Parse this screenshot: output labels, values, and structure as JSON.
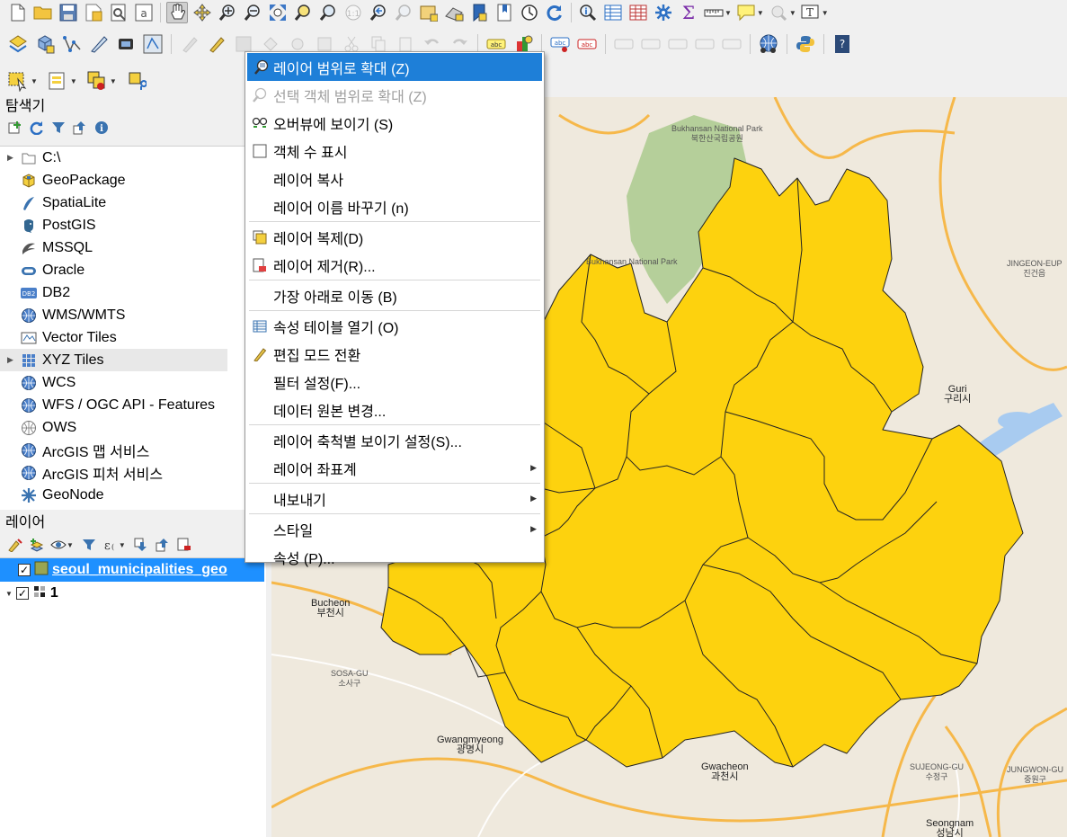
{
  "toolbar": {
    "row1": [
      "new-project-icon",
      "open-project-icon",
      "save-project-icon",
      "save-as-icon",
      "print-layout-icon",
      "style-manager-icon",
      "pan-map-icon",
      "pan-to-selection-icon",
      "zoom-in-icon",
      "zoom-out-icon",
      "zoom-full-icon",
      "zoom-to-selection-icon",
      "zoom-to-layer-icon",
      "zoom-native-icon",
      "zoom-last-icon",
      "zoom-next-icon",
      "new-map-view-icon",
      "new-3d-view-icon",
      "bookmark-icon",
      "show-bookmarks-icon",
      "temporal-controller-icon",
      "refresh-icon",
      "identify-icon",
      "attribute-table-icon",
      "field-calculator-icon",
      "processing-toolbox-icon",
      "statistics-icon",
      "measure-icon",
      "annotation-icon",
      "map-tips-icon",
      "text-annotation-icon"
    ],
    "row2": [
      "data-source-manager-icon",
      "new-geopackage-icon",
      "new-shapefile-icon",
      "digitize-icon",
      "gps-icon",
      "vertex-tool-icon",
      "current-edits-icon",
      "toggle-editing-icon",
      "save-edits-icon",
      "add-feature-icon",
      "label-icon",
      "pin-labels-icon",
      "python-console-icon",
      "help-icon"
    ]
  },
  "browser": {
    "title": "탐색기",
    "items": [
      {
        "label": "C:\\",
        "icon": "folder-icon",
        "expandable": true
      },
      {
        "label": "GeoPackage",
        "icon": "geopackage-icon",
        "expandable": false
      },
      {
        "label": "SpatiaLite",
        "icon": "spatialite-icon",
        "expandable": false
      },
      {
        "label": "PostGIS",
        "icon": "postgis-icon",
        "expandable": false
      },
      {
        "label": "MSSQL",
        "icon": "mssql-icon",
        "expandable": false
      },
      {
        "label": "Oracle",
        "icon": "oracle-icon",
        "expandable": false
      },
      {
        "label": "DB2",
        "icon": "db2-icon",
        "expandable": false
      },
      {
        "label": "WMS/WMTS",
        "icon": "wms-icon",
        "expandable": false
      },
      {
        "label": "Vector Tiles",
        "icon": "vector-tiles-icon",
        "expandable": false
      },
      {
        "label": "XYZ Tiles",
        "icon": "xyz-tiles-icon",
        "expandable": true
      },
      {
        "label": "WCS",
        "icon": "wcs-icon",
        "expandable": false
      },
      {
        "label": "WFS / OGC API - Features",
        "icon": "wfs-icon",
        "expandable": false
      },
      {
        "label": "OWS",
        "icon": "ows-icon",
        "expandable": false
      },
      {
        "label": "ArcGIS 맵 서비스",
        "icon": "arcgis-map-icon",
        "expandable": false
      },
      {
        "label": "ArcGIS 피처 서비스",
        "icon": "arcgis-feature-icon",
        "expandable": false
      },
      {
        "label": "GeoNode",
        "icon": "geonode-icon",
        "expandable": false
      }
    ]
  },
  "layers": {
    "title": "레이어",
    "items": [
      {
        "label": "seoul_municipalities_geo",
        "checked": true,
        "selected": true
      },
      {
        "label": "1",
        "checked": true,
        "selected": false
      }
    ]
  },
  "context_menu": {
    "items": [
      {
        "label": "레이어 범위로 확대 (Z)",
        "icon": "zoom-layer-icon",
        "state": "active"
      },
      {
        "label": "선택 객체 범위로 확대 (Z)",
        "icon": "zoom-selection-icon",
        "state": "disabled"
      },
      {
        "label": "오버뷰에 보이기 (S)",
        "icon": "overview-icon"
      },
      {
        "label": "객체 수 표시",
        "icon": "checkbox-icon"
      },
      {
        "label": "레이어 복사"
      },
      {
        "label": "레이어 이름 바꾸기 (n)"
      },
      {
        "sep": true
      },
      {
        "label": "레이어 복제(D)",
        "icon": "duplicate-layer-icon"
      },
      {
        "label": "레이어 제거(R)...",
        "icon": "remove-layer-icon"
      },
      {
        "sep": true
      },
      {
        "label": "가장 아래로 이동 (B)"
      },
      {
        "sep": true
      },
      {
        "label": "속성 테이블 열기 (O)",
        "icon": "attribute-table-icon"
      },
      {
        "label": "편집 모드 전환",
        "icon": "pencil-icon"
      },
      {
        "label": "필터 설정(F)..."
      },
      {
        "label": "데이터 원본 변경..."
      },
      {
        "sep": true
      },
      {
        "label": "레이어 축척별 보이기 설정(S)..."
      },
      {
        "label": "레이어 좌표계",
        "submenu": true
      },
      {
        "sep": true
      },
      {
        "label": "내보내기",
        "submenu": true
      },
      {
        "sep": true
      },
      {
        "label": "스타일",
        "submenu": true
      },
      {
        "label": "속성 (P)..."
      }
    ]
  },
  "map": {
    "labels": {
      "bukhansan": "Bukhansan National Park",
      "bukhansan_ko": "북한산국립공원",
      "bukhansan2": "Bukhansan National Park",
      "guri": "Guri",
      "guri_ko": "구리시",
      "bucheon": "Bucheon",
      "bucheon_ko": "부천시",
      "gwangmyeong": "Gwangmyeong",
      "gwangmyeong_ko": "광명시",
      "gwacheon": "Gwacheon",
      "gwacheon_ko": "과천시",
      "seongnam": "Seongnam",
      "seongnam_ko": "성남시",
      "jingeon": "JINGEON-EUP",
      "jingeon_ko": "진건읍",
      "sosa": "SOSA-GU",
      "sosa_ko": "소사구",
      "sujeong": "SUJEONG-GU",
      "sujeong_ko": "수정구",
      "jungwon": "JUNGWON-GU",
      "jungwon_ko": "중원구"
    },
    "colors": {
      "polygon": "#fdd20e",
      "outline": "#222222",
      "background": "#efe9dd",
      "park": "#b5cf9a",
      "river": "#a8cbf0",
      "road": "#f6b84a"
    }
  }
}
